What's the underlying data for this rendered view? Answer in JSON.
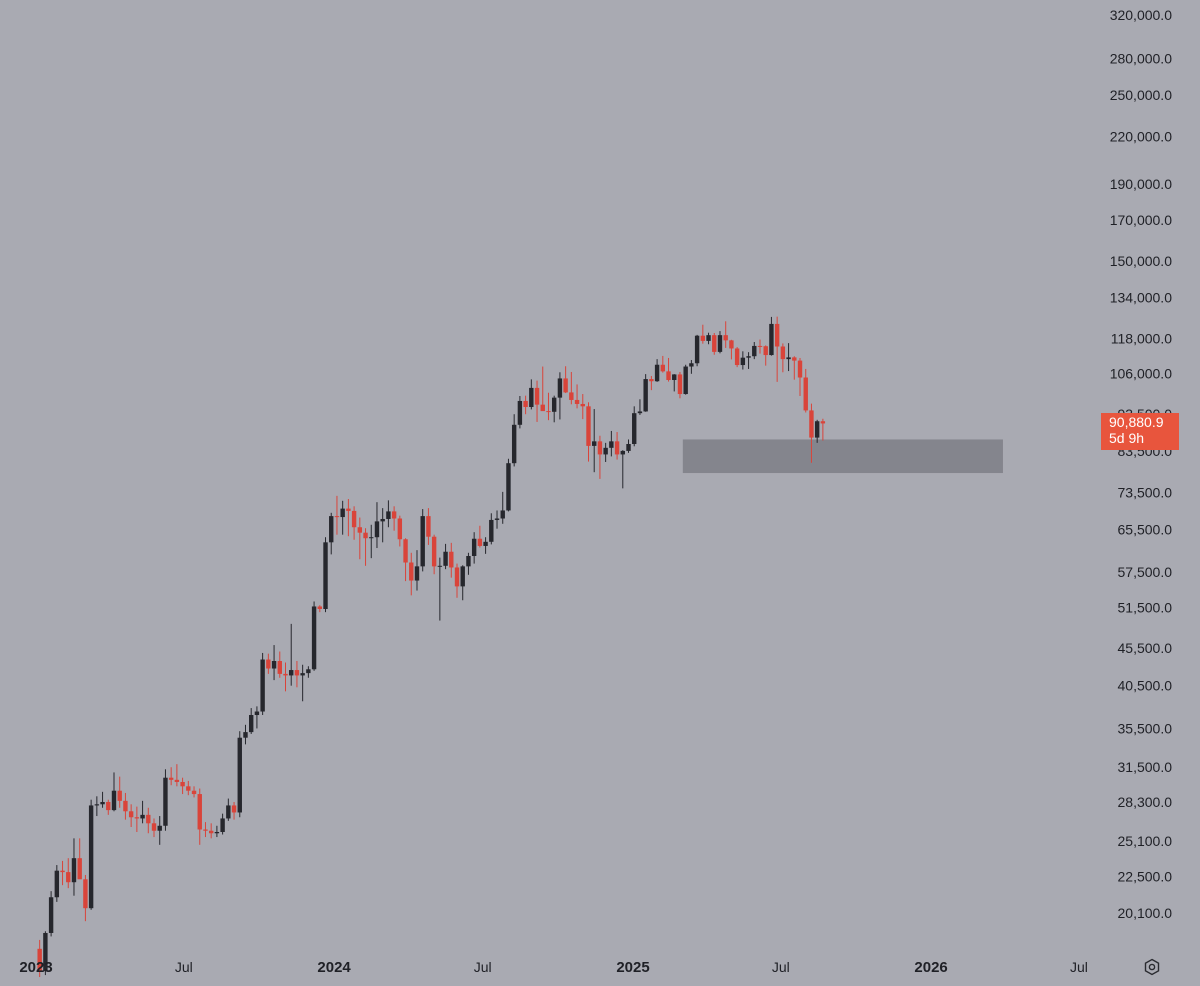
{
  "chart_data": {
    "type": "candlestick",
    "title": "",
    "interval": "weekly",
    "y_scale": "log",
    "grid": false,
    "y_ticks": [
      "320,000.0",
      "280,000.0",
      "250,000.0",
      "220,000.0",
      "190,000.0",
      "170,000.0",
      "150,000.0",
      "134,000.0",
      "118,000.0",
      "106,000.0",
      "93,500.0",
      "83,500.0",
      "73,500.0",
      "65,500.0",
      "57,500.0",
      "51,500.0",
      "45,500.0",
      "40,500.0",
      "35,500.0",
      "31,500.0",
      "28,300.0",
      "25,100.0",
      "22,500.0",
      "20,100.0"
    ],
    "y_tick_values": [
      320000,
      280000,
      250000,
      220000,
      190000,
      170000,
      150000,
      134000,
      118000,
      106000,
      93500,
      83500,
      73500,
      65500,
      57500,
      51500,
      45500,
      40500,
      35500,
      31500,
      28300,
      25100,
      22500,
      20100
    ],
    "x_ticks": [
      {
        "label": "2023",
        "date": "2023-01-01",
        "bold": true
      },
      {
        "label": "Jul",
        "date": "2023-07-01",
        "bold": false
      },
      {
        "label": "2024",
        "date": "2024-01-01",
        "bold": true
      },
      {
        "label": "Jul",
        "date": "2024-07-01",
        "bold": false
      },
      {
        "label": "2025",
        "date": "2025-01-01",
        "bold": true
      },
      {
        "label": "Jul",
        "date": "2025-07-01",
        "bold": false
      },
      {
        "label": "2026",
        "date": "2026-01-01",
        "bold": true
      },
      {
        "label": "Jul",
        "date": "2026-07-01",
        "bold": false
      }
    ],
    "colors": {
      "background": "#a9aab2",
      "up": "#26272d",
      "down": "#d9443a",
      "zone": "#7e7f86",
      "badge": "#e8553d"
    },
    "zone": {
      "start": "2025-03-03",
      "end": "2026-03-30",
      "low": 78000,
      "high": 86500
    },
    "last_price": "90,880.9",
    "countdown": "5d 9h",
    "candles_ohlc": [
      [
        18000,
        18500,
        16500,
        16800
      ],
      [
        16800,
        19000,
        16600,
        18900
      ],
      [
        18900,
        21500,
        18700,
        21100
      ],
      [
        21100,
        23300,
        20800,
        22900
      ],
      [
        22900,
        23600,
        21900,
        22800
      ],
      [
        22800,
        23800,
        21700,
        22100
      ],
      [
        22100,
        25300,
        21200,
        23800
      ],
      [
        23800,
        25300,
        22500,
        22300
      ],
      [
        22300,
        22600,
        19600,
        20400
      ],
      [
        20400,
        28500,
        20300,
        28000
      ],
      [
        28000,
        28800,
        27100,
        28100
      ],
      [
        28100,
        29200,
        27800,
        28300
      ],
      [
        28300,
        28500,
        27200,
        27600
      ],
      [
        27600,
        31000,
        27500,
        29300
      ],
      [
        29300,
        30600,
        27800,
        28400
      ],
      [
        28400,
        29100,
        26800,
        27500
      ],
      [
        27500,
        28100,
        26200,
        27000
      ],
      [
        27000,
        27900,
        25800,
        26900
      ],
      [
        26900,
        28400,
        26500,
        27200
      ],
      [
        27200,
        27800,
        25700,
        26500
      ],
      [
        26500,
        26900,
        25400,
        25900
      ],
      [
        25900,
        27100,
        24800,
        26300
      ],
      [
        26300,
        31300,
        25900,
        30500
      ],
      [
        30500,
        31500,
        29800,
        30300
      ],
      [
        30300,
        31800,
        29700,
        30100
      ],
      [
        30100,
        30500,
        29000,
        29700
      ],
      [
        29700,
        30200,
        28900,
        29300
      ],
      [
        29300,
        29700,
        28700,
        29000
      ],
      [
        29000,
        29500,
        24800,
        26000
      ],
      [
        26000,
        26600,
        25400,
        25900
      ],
      [
        25900,
        26500,
        25300,
        25700
      ],
      [
        25700,
        26300,
        25400,
        25800
      ],
      [
        25800,
        27300,
        25600,
        26900
      ],
      [
        26900,
        28600,
        26700,
        28000
      ],
      [
        28000,
        28300,
        26800,
        27400
      ],
      [
        27400,
        35200,
        27000,
        34500
      ],
      [
        34500,
        35900,
        33800,
        35100
      ],
      [
        35100,
        37800,
        34900,
        37000
      ],
      [
        37000,
        38000,
        35500,
        37400
      ],
      [
        37400,
        44800,
        37000,
        43900
      ],
      [
        43900,
        44700,
        42000,
        42700
      ],
      [
        42700,
        45900,
        41200,
        43700
      ],
      [
        43700,
        45000,
        41500,
        42000
      ],
      [
        42000,
        43500,
        39800,
        41800
      ],
      [
        41800,
        49000,
        40500,
        42500
      ],
      [
        42500,
        43700,
        40300,
        41800
      ],
      [
        41800,
        43200,
        38600,
        42100
      ],
      [
        42100,
        43000,
        41500,
        42600
      ],
      [
        42600,
        52500,
        42400,
        51700
      ],
      [
        51700,
        51900,
        50800,
        51300
      ],
      [
        51300,
        64000,
        50800,
        63000
      ],
      [
        63000,
        69000,
        60700,
        68300
      ],
      [
        68300,
        72700,
        64500,
        68100
      ],
      [
        68100,
        71600,
        64500,
        69900
      ],
      [
        69900,
        72000,
        64200,
        69400
      ],
      [
        69400,
        70400,
        63500,
        66000
      ],
      [
        66000,
        68000,
        59800,
        64900
      ],
      [
        64900,
        65800,
        58600,
        63800
      ],
      [
        63800,
        66500,
        60000,
        64000
      ],
      [
        64000,
        71300,
        61900,
        67200
      ],
      [
        67200,
        70000,
        63000,
        67700
      ],
      [
        67700,
        71700,
        66000,
        69300
      ],
      [
        69300,
        70400,
        65300,
        67800
      ],
      [
        67800,
        68400,
        62200,
        63600
      ],
      [
        63600,
        63800,
        55900,
        59200
      ],
      [
        59200,
        61000,
        53500,
        56000
      ],
      [
        56000,
        61500,
        54300,
        58500
      ],
      [
        58500,
        69800,
        57600,
        68300
      ],
      [
        68300,
        70000,
        62500,
        64100
      ],
      [
        64100,
        64500,
        57100,
        58500
      ],
      [
        58500,
        60100,
        49500,
        58600
      ],
      [
        58600,
        62700,
        58000,
        61200
      ],
      [
        61200,
        62900,
        56500,
        58300
      ],
      [
        58300,
        59000,
        53100,
        55000
      ],
      [
        55000,
        58700,
        52700,
        58500
      ],
      [
        58500,
        61000,
        57000,
        60400
      ],
      [
        60400,
        65000,
        59000,
        63700
      ],
      [
        63700,
        66300,
        62000,
        62300
      ],
      [
        62300,
        64000,
        60800,
        63100
      ],
      [
        63100,
        68900,
        62600,
        67500
      ],
      [
        67500,
        69500,
        65700,
        67800
      ],
      [
        67800,
        73600,
        66700,
        69500
      ],
      [
        69500,
        81500,
        69300,
        80400
      ],
      [
        80400,
        93500,
        79600,
        90500
      ],
      [
        90500,
        98900,
        89500,
        97400
      ],
      [
        97400,
        99000,
        93500,
        95600
      ],
      [
        95600,
        104100,
        94900,
        101400
      ],
      [
        101400,
        103700,
        91300,
        96300
      ],
      [
        96300,
        108300,
        94900,
        94400
      ],
      [
        94400,
        99900,
        91800,
        94200
      ],
      [
        94200,
        99000,
        91200,
        98400
      ],
      [
        98400,
        106400,
        92000,
        104400
      ],
      [
        104400,
        108400,
        99800,
        100000
      ],
      [
        100000,
        106500,
        96400,
        97700
      ],
      [
        97700,
        102500,
        95200,
        96500
      ],
      [
        96500,
        99500,
        92100,
        95800
      ],
      [
        95800,
        97000,
        80800,
        84800
      ],
      [
        84800,
        95000,
        78200,
        86000
      ],
      [
        86000,
        87500,
        76600,
        82600
      ],
      [
        82600,
        85600,
        80700,
        84300
      ],
      [
        84300,
        88800,
        82100,
        86000
      ],
      [
        86000,
        88500,
        81300,
        82600
      ],
      [
        82600,
        83700,
        74400,
        83500
      ],
      [
        83500,
        86500,
        83000,
        85300
      ],
      [
        85300,
        95800,
        84700,
        93800
      ],
      [
        93800,
        97900,
        93300,
        94300
      ],
      [
        94300,
        105800,
        94200,
        104200
      ],
      [
        104200,
        105200,
        100700,
        103500
      ],
      [
        103500,
        110800,
        103300,
        108900
      ],
      [
        108900,
        111900,
        106300,
        106700
      ],
      [
        106700,
        111200,
        103400,
        103900
      ],
      [
        103900,
        105800,
        100300,
        105700
      ],
      [
        105700,
        106500,
        98200,
        99500
      ],
      [
        99500,
        108900,
        99300,
        108300
      ],
      [
        108300,
        110500,
        105900,
        109400
      ],
      [
        109400,
        119400,
        108400,
        119100
      ],
      [
        119100,
        123200,
        116200,
        117200
      ],
      [
        117200,
        120200,
        116000,
        119300
      ],
      [
        119300,
        120100,
        112300,
        113300
      ],
      [
        113300,
        120800,
        112800,
        119300
      ],
      [
        119300,
        124500,
        114700,
        117400
      ],
      [
        117400,
        117600,
        110700,
        114500
      ],
      [
        114500,
        115000,
        108100,
        108800
      ],
      [
        108800,
        113500,
        107300,
        111300
      ],
      [
        111300,
        113200,
        107500,
        111800
      ],
      [
        111800,
        116800,
        110800,
        115400
      ],
      [
        115400,
        117700,
        112700,
        115300
      ],
      [
        115300,
        115600,
        108600,
        112200
      ],
      [
        112200,
        126200,
        112000,
        123500
      ],
      [
        123500,
        126300,
        103300,
        115200
      ],
      [
        115200,
        116300,
        106400,
        110800
      ],
      [
        110800,
        116400,
        106800,
        111400
      ],
      [
        111400,
        111800,
        104000,
        110300
      ],
      [
        110300,
        111200,
        98900,
        104700
      ],
      [
        104700,
        107500,
        94000,
        94600
      ],
      [
        94600,
        96600,
        80500,
        87000
      ],
      [
        87000,
        91900,
        85600,
        91500
      ],
      [
        91500,
        92200,
        86200,
        90880
      ]
    ]
  }
}
